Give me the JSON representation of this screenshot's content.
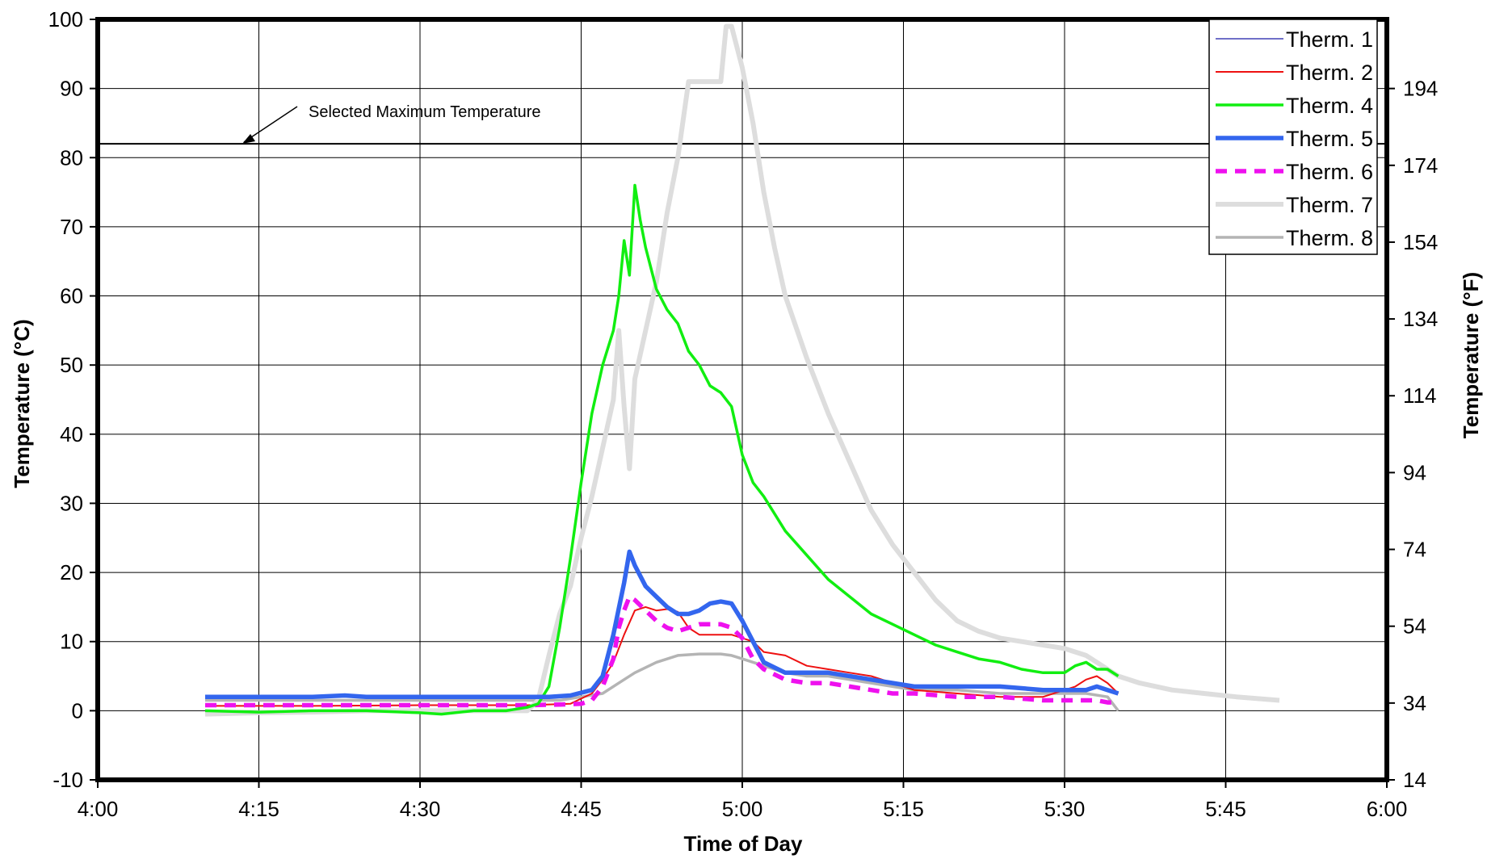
{
  "chart_data": {
    "type": "line",
    "xlabel": "Time of Day",
    "ylabel": "Temperature (°C)",
    "y2label": "Temperature (°F)",
    "xlim": [
      0,
      120
    ],
    "ylim": [
      -10,
      100
    ],
    "xticks": [
      {
        "v": 0,
        "label": "4:00"
      },
      {
        "v": 15,
        "label": "4:15"
      },
      {
        "v": 30,
        "label": "4:30"
      },
      {
        "v": 45,
        "label": "4:45"
      },
      {
        "v": 60,
        "label": "5:00"
      },
      {
        "v": 75,
        "label": "5:15"
      },
      {
        "v": 90,
        "label": "5:30"
      },
      {
        "v": 105,
        "label": "5:45"
      },
      {
        "v": 120,
        "label": "6:00"
      }
    ],
    "yticks": [
      {
        "v": -10,
        "label": "-10"
      },
      {
        "v": 0,
        "label": "0"
      },
      {
        "v": 10,
        "label": "10"
      },
      {
        "v": 20,
        "label": "20"
      },
      {
        "v": 30,
        "label": "30"
      },
      {
        "v": 40,
        "label": "40"
      },
      {
        "v": 50,
        "label": "50"
      },
      {
        "v": 60,
        "label": "60"
      },
      {
        "v": 70,
        "label": "70"
      },
      {
        "v": 80,
        "label": "80"
      },
      {
        "v": 90,
        "label": "90"
      },
      {
        "v": 100,
        "label": "100"
      }
    ],
    "y2ticks": [
      {
        "v": 14,
        "label": "14"
      },
      {
        "v": 34,
        "label": "34"
      },
      {
        "v": 54,
        "label": "54"
      },
      {
        "v": 74,
        "label": "74"
      },
      {
        "v": 94,
        "label": "94"
      },
      {
        "v": 114,
        "label": "114"
      },
      {
        "v": 134,
        "label": "134"
      },
      {
        "v": 154,
        "label": "154"
      },
      {
        "v": 174,
        "label": "174"
      },
      {
        "v": 194,
        "label": "194"
      }
    ],
    "grid": true,
    "legend_position": "top-right",
    "annotation": {
      "text": "Selected Maximum Temperature",
      "y": 82
    },
    "series": [
      {
        "name": "Therm. 1",
        "color": "#1a1aa8",
        "width": 1.3,
        "dash": "",
        "x": [],
        "y": []
      },
      {
        "name": "Therm. 2",
        "color": "#ee1111",
        "width": 2,
        "dash": "",
        "x": [
          10,
          20,
          30,
          40,
          44,
          46,
          47,
          48,
          49,
          50,
          51,
          52,
          53,
          54,
          55,
          56,
          57,
          58,
          59,
          60,
          61,
          62,
          64,
          66,
          68,
          70,
          72,
          74,
          76,
          80,
          84,
          88,
          90,
          91,
          92,
          93,
          94,
          95
        ],
        "y": [
          0.7,
          0.7,
          0.8,
          0.8,
          1.0,
          2.5,
          4.5,
          7.0,
          11.0,
          14.5,
          15.0,
          14.5,
          14.7,
          14.3,
          12.0,
          11.0,
          11.0,
          11.0,
          11.0,
          10.5,
          10.0,
          8.5,
          8.0,
          6.5,
          6.0,
          5.5,
          5.0,
          4.0,
          3.0,
          2.5,
          2.0,
          2.0,
          3.0,
          3.5,
          4.5,
          5.0,
          4.0,
          2.5
        ]
      },
      {
        "name": "Therm. 4",
        "color": "#11ee11",
        "width": 3.5,
        "dash": "",
        "x": [
          10,
          15,
          20,
          25,
          30,
          32,
          35,
          38,
          40,
          41,
          42,
          43,
          44,
          45,
          46,
          47,
          48,
          48.5,
          49,
          49.5,
          50,
          50.5,
          51,
          52,
          53,
          54,
          55,
          56,
          57,
          58,
          59,
          60,
          61,
          62,
          64,
          66,
          68,
          70,
          72,
          74,
          76,
          78,
          80,
          82,
          84,
          86,
          88,
          90,
          91,
          92,
          93,
          94,
          95
        ],
        "y": [
          0,
          -0.2,
          0,
          0,
          -0.3,
          -0.5,
          0,
          0,
          0.5,
          1.0,
          3.5,
          12.0,
          22.0,
          33.0,
          43.0,
          50.0,
          55.0,
          60.0,
          68.0,
          63.0,
          76.0,
          71.0,
          67.0,
          61.0,
          58.0,
          56.0,
          52.0,
          50.0,
          47.0,
          46.0,
          44.0,
          37.0,
          33.0,
          31.0,
          26.0,
          22.5,
          19.0,
          16.5,
          14.0,
          12.5,
          11.0,
          9.5,
          8.5,
          7.5,
          7.0,
          6.0,
          5.5,
          5.5,
          6.5,
          7.0,
          6.0,
          6.0,
          5.0
        ]
      },
      {
        "name": "Therm. 5",
        "color": "#3366ee",
        "width": 5.5,
        "dash": "",
        "x": [
          10,
          15,
          20,
          23,
          25,
          30,
          35,
          40,
          42,
          44,
          46,
          47,
          48,
          49,
          49.5,
          50,
          51,
          52,
          53,
          54,
          55,
          56,
          57,
          58,
          59,
          60,
          61,
          62,
          64,
          66,
          68,
          70,
          72,
          74,
          76,
          80,
          84,
          88,
          90,
          92,
          93,
          94,
          95
        ],
        "y": [
          2.0,
          2.0,
          2.0,
          2.2,
          2.0,
          2.0,
          2.0,
          2.0,
          2.0,
          2.2,
          3.0,
          5.0,
          11.0,
          18.5,
          23.0,
          21.0,
          18.0,
          16.5,
          15.0,
          14.0,
          14.0,
          14.5,
          15.5,
          15.8,
          15.5,
          13.0,
          10.0,
          7.0,
          5.5,
          5.5,
          5.5,
          5.0,
          4.5,
          4.0,
          3.5,
          3.5,
          3.5,
          3.0,
          3.0,
          3.0,
          3.5,
          3.0,
          2.5
        ]
      },
      {
        "name": "Therm. 6",
        "color": "#ee11ee",
        "width": 5.5,
        "dash": "14,10",
        "x": [
          10,
          15,
          20,
          25,
          30,
          35,
          40,
          43,
          45,
          46,
          47,
          48,
          48.5,
          49,
          49.5,
          50,
          51,
          52,
          53,
          54,
          55,
          56,
          57,
          58,
          59,
          60,
          61,
          62,
          64,
          66,
          68,
          70,
          72,
          74,
          76,
          80,
          84,
          88,
          90,
          92,
          93,
          94,
          95
        ],
        "y": [
          0.8,
          0.8,
          0.8,
          0.8,
          0.8,
          0.8,
          0.8,
          0.9,
          1.0,
          1.5,
          3.5,
          7.5,
          12.0,
          14.5,
          16.5,
          16.0,
          14.5,
          13.0,
          12.0,
          11.5,
          12.0,
          12.5,
          12.5,
          12.5,
          12.0,
          10.5,
          7.5,
          6.0,
          4.5,
          4.0,
          4.0,
          3.5,
          3.0,
          2.5,
          2.5,
          2.0,
          2.0,
          1.5,
          1.5,
          1.5,
          1.5,
          1.2,
          1.2
        ]
      },
      {
        "name": "Therm. 7",
        "color": "#dddddd",
        "width": 6,
        "dash": "",
        "x": [
          10,
          15,
          20,
          25,
          30,
          35,
          38,
          40,
          41,
          42,
          43,
          44,
          45,
          46,
          47,
          48,
          48.5,
          49,
          49.5,
          50,
          51,
          52,
          53,
          54,
          55,
          56,
          57,
          58,
          58.5,
          59,
          60,
          61,
          62,
          63,
          64,
          66,
          68,
          70,
          72,
          74,
          76,
          78,
          80,
          82,
          84,
          86,
          88,
          90,
          91,
          92,
          93,
          94,
          95,
          97,
          100,
          103,
          106,
          110
        ],
        "y": [
          -0.5,
          -0.3,
          -0.2,
          0,
          0,
          0,
          0,
          0,
          1.5,
          8.0,
          14.0,
          18.0,
          25.0,
          31.0,
          38.0,
          45.0,
          55.0,
          44.0,
          35.0,
          48.0,
          55.0,
          62.0,
          72.0,
          80.0,
          91.0,
          91.0,
          91.0,
          91.0,
          99.0,
          99.0,
          93.0,
          85.0,
          75.0,
          67.0,
          60.0,
          51.0,
          43.0,
          36.0,
          29.0,
          24.0,
          20.0,
          16.0,
          13.0,
          11.5,
          10.5,
          10.0,
          9.5,
          9.0,
          8.5,
          8.0,
          7.0,
          6.0,
          5.0,
          4.0,
          3.0,
          2.5,
          2.0,
          1.5
        ]
      },
      {
        "name": "Therm. 8",
        "color": "#b4b4b4",
        "width": 3.5,
        "dash": "",
        "x": [
          10,
          15,
          20,
          25,
          30,
          35,
          40,
          43,
          45,
          47,
          49,
          50,
          52,
          54,
          56,
          58,
          59,
          60,
          62,
          64,
          66,
          68,
          70,
          72,
          74,
          76,
          80,
          84,
          88,
          90,
          92,
          94,
          95
        ],
        "y": [
          1.5,
          1.5,
          1.5,
          1.5,
          1.5,
          1.5,
          1.5,
          1.5,
          2.0,
          2.5,
          4.5,
          5.5,
          7.0,
          8.0,
          8.2,
          8.2,
          8.0,
          7.5,
          6.5,
          5.5,
          5.0,
          5.0,
          4.5,
          4.0,
          3.5,
          3.0,
          3.0,
          2.5,
          2.5,
          2.5,
          2.5,
          2.0,
          0.0
        ]
      }
    ]
  }
}
